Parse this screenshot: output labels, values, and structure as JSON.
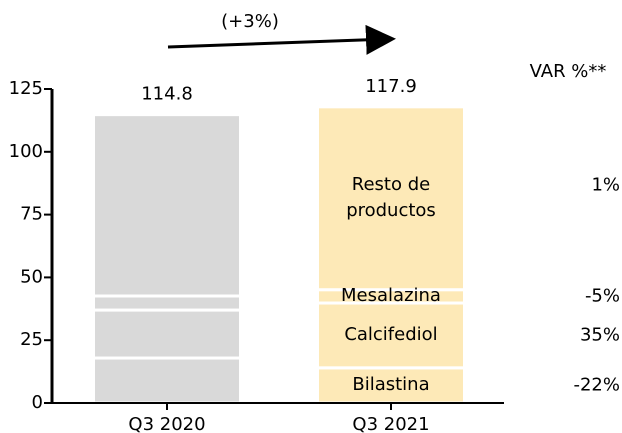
{
  "chart_data": {
    "type": "stacked_bar",
    "annotation": "(+3%)",
    "categories": [
      "Q3 2020",
      "Q3 2021"
    ],
    "category_colors": [
      "#d9d9d9",
      "#fde9b7"
    ],
    "totals": [
      114.8,
      117.9
    ],
    "series": [
      {
        "name": "Bilastina",
        "values": [
          17.9,
          14.0
        ],
        "change": -22,
        "change_label": "-22%"
      },
      {
        "name": "Calcifediol",
        "values": [
          19.1,
          25.8
        ],
        "change": 35,
        "change_label": "35%"
      },
      {
        "name": "Mesalazina",
        "values": [
          5.6,
          5.3
        ],
        "change": -5,
        "change_label": "-5%"
      },
      {
        "name": "Resto de productos",
        "values": [
          72.2,
          72.8
        ],
        "change": 1,
        "change_label": "1%"
      }
    ],
    "change_header": "VAR %**",
    "ylim": [
      0,
      125
    ],
    "yticks": [
      0,
      25,
      50,
      75,
      100,
      125
    ]
  }
}
